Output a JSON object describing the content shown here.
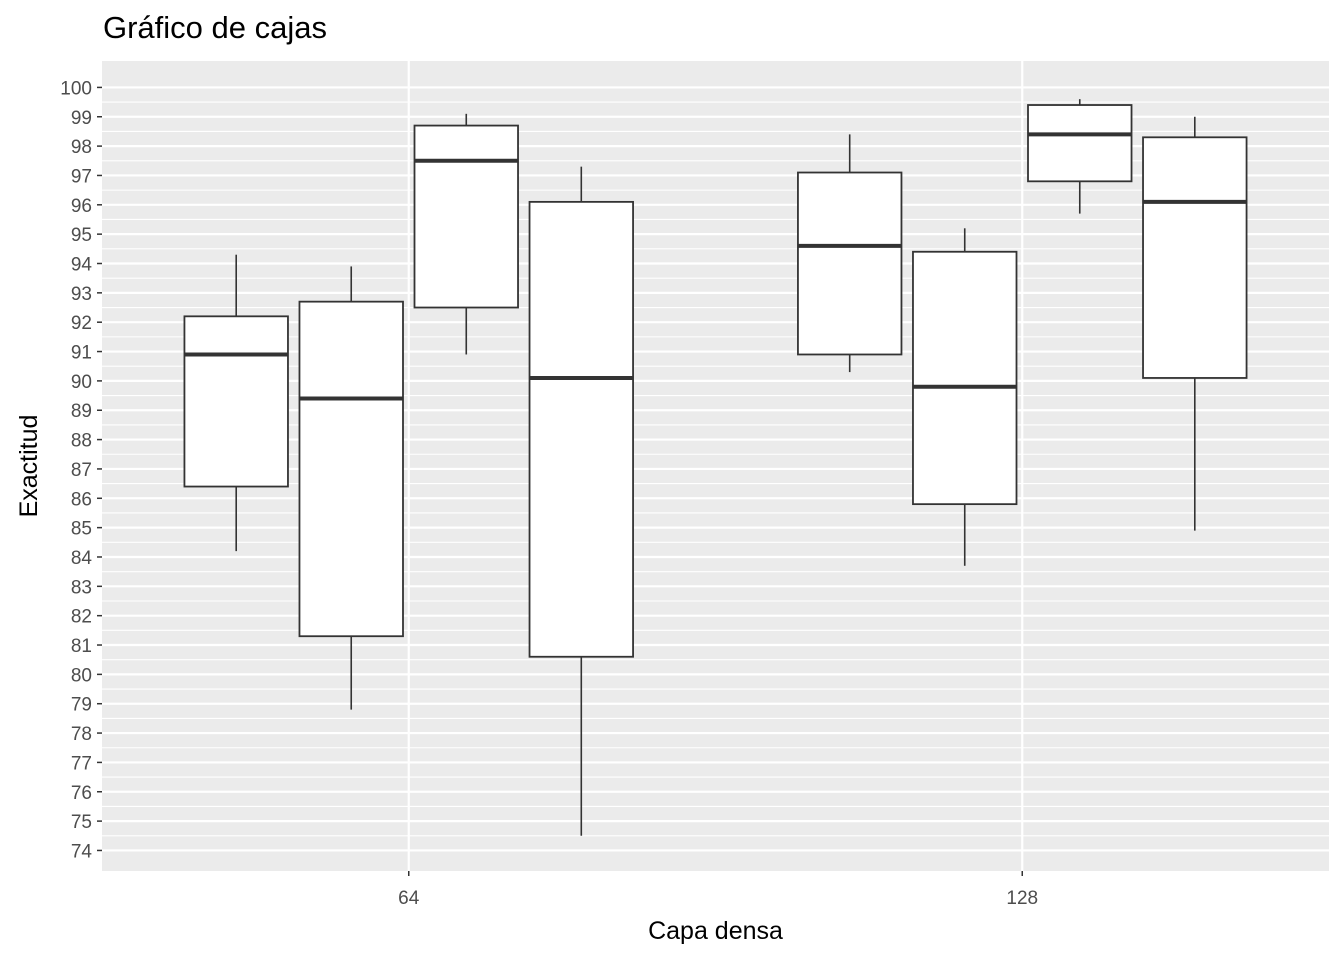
{
  "chart_data": {
    "type": "boxplot",
    "title": "Gráfico de cajas",
    "xlabel": "Capa densa",
    "ylabel": "Exactitud",
    "ylim": [
      73.3,
      100.9
    ],
    "y_ticks": [
      74,
      75,
      76,
      77,
      78,
      79,
      80,
      81,
      82,
      83,
      84,
      85,
      86,
      87,
      88,
      89,
      90,
      91,
      92,
      93,
      94,
      95,
      96,
      97,
      98,
      99,
      100
    ],
    "categories": [
      "64",
      "128"
    ],
    "grid": true,
    "legend": "none",
    "colors": {
      "panel": "#ebebeb",
      "grid": "#ffffff",
      "box_fill": "#ffffff",
      "box_stroke": "#333333",
      "tick_text": "#4d4d4d"
    },
    "groups": [
      {
        "category": "64",
        "boxes": [
          {
            "whisker_low": 84.2,
            "q1": 86.4,
            "median": 90.9,
            "q3": 92.2,
            "whisker_high": 94.3
          },
          {
            "whisker_low": 78.8,
            "q1": 81.3,
            "median": 89.4,
            "q3": 92.7,
            "whisker_high": 93.9
          },
          {
            "whisker_low": 90.9,
            "q1": 92.5,
            "median": 97.5,
            "q3": 98.7,
            "whisker_high": 99.1
          },
          {
            "whisker_low": 74.5,
            "q1": 80.6,
            "median": 90.1,
            "q3": 96.1,
            "whisker_high": 97.3
          }
        ]
      },
      {
        "category": "128",
        "boxes": [
          {
            "whisker_low": 90.3,
            "q1": 90.9,
            "median": 94.6,
            "q3": 97.1,
            "whisker_high": 98.4
          },
          {
            "whisker_low": 83.7,
            "q1": 85.8,
            "median": 89.8,
            "q3": 94.4,
            "whisker_high": 95.2
          },
          {
            "whisker_low": 95.7,
            "q1": 96.8,
            "median": 98.4,
            "q3": 99.4,
            "whisker_high": 99.6
          },
          {
            "whisker_low": 84.9,
            "q1": 90.1,
            "median": 96.1,
            "q3": 98.3,
            "whisker_high": 99.0
          }
        ]
      }
    ]
  }
}
